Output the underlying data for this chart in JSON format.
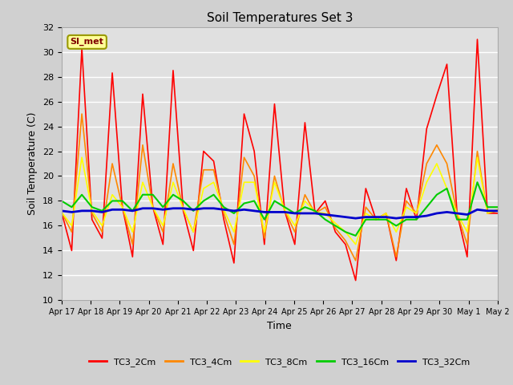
{
  "title": "Soil Temperatures Set 3",
  "xlabel": "Time",
  "ylabel": "Soil Temperature (C)",
  "ylim": [
    10,
    32
  ],
  "yticks": [
    10,
    12,
    14,
    16,
    18,
    20,
    22,
    24,
    26,
    28,
    30,
    32
  ],
  "fig_bg_color": "#d0d0d0",
  "plot_bg_color": "#e0e0e0",
  "grid_color": "#ffffff",
  "watermark_text": "SI_met",
  "watermark_bg": "#ffff99",
  "watermark_border": "#999900",
  "watermark_text_color": "#800000",
  "legend_entries": [
    "TC3_2Cm",
    "TC3_4Cm",
    "TC3_8Cm",
    "TC3_16Cm",
    "TC3_32Cm"
  ],
  "line_colors": [
    "#ff0000",
    "#ff8800",
    "#ffff00",
    "#00cc00",
    "#0000cc"
  ],
  "line_widths": [
    1.2,
    1.2,
    1.2,
    1.5,
    2.0
  ],
  "x_tick_labels": [
    "Apr 17",
    "Apr 18",
    "Apr 19",
    "Apr 20",
    "Apr 21",
    "Apr 22",
    "Apr 23",
    "Apr 24",
    "Apr 25",
    "Apr 26",
    "Apr 27",
    "Apr 28",
    "Apr 29",
    "Apr 30",
    "May 1",
    "May 2"
  ],
  "TC3_2Cm": [
    17.1,
    14.0,
    30.3,
    16.5,
    15.0,
    28.3,
    17.5,
    13.5,
    26.6,
    17.5,
    14.5,
    28.5,
    17.2,
    14.0,
    22.0,
    21.2,
    16.5,
    13.0,
    25.0,
    22.0,
    14.5,
    25.8,
    17.2,
    14.5,
    24.3,
    17.0,
    18.0,
    15.5,
    14.5,
    11.6,
    19.0,
    16.5,
    17.0,
    13.2,
    19.0,
    16.5,
    23.8,
    26.5,
    29.0,
    17.0,
    13.5,
    31.0,
    17.0,
    17.0
  ],
  "TC3_4Cm": [
    17.1,
    15.5,
    25.0,
    17.0,
    15.5,
    21.0,
    17.5,
    14.5,
    22.5,
    17.5,
    15.5,
    21.0,
    17.3,
    15.5,
    20.5,
    20.5,
    17.0,
    14.5,
    21.5,
    20.0,
    15.0,
    20.0,
    17.2,
    15.5,
    18.5,
    17.0,
    17.5,
    15.8,
    14.8,
    13.2,
    17.5,
    16.5,
    17.0,
    13.5,
    18.0,
    17.0,
    21.0,
    22.5,
    21.0,
    17.0,
    14.5,
    22.0,
    17.0,
    17.2
  ],
  "TC3_8Cm": [
    17.1,
    16.0,
    21.5,
    17.2,
    16.0,
    18.5,
    17.5,
    15.5,
    19.5,
    17.5,
    16.0,
    19.5,
    17.4,
    15.5,
    19.0,
    19.5,
    17.3,
    15.5,
    19.5,
    19.5,
    15.5,
    19.5,
    17.3,
    16.0,
    18.0,
    17.1,
    17.0,
    16.2,
    15.5,
    14.5,
    17.0,
    16.5,
    17.0,
    15.5,
    17.5,
    17.0,
    19.5,
    21.0,
    19.0,
    17.0,
    15.5,
    21.5,
    17.0,
    17.3
  ],
  "TC3_16Cm": [
    18.0,
    17.5,
    18.5,
    17.5,
    17.2,
    18.0,
    18.0,
    17.2,
    18.5,
    18.5,
    17.5,
    18.5,
    18.0,
    17.2,
    18.0,
    18.5,
    17.5,
    17.0,
    17.8,
    18.0,
    16.5,
    18.0,
    17.5,
    17.0,
    17.5,
    17.2,
    16.5,
    16.0,
    15.5,
    15.2,
    16.5,
    16.5,
    16.5,
    16.0,
    16.5,
    16.5,
    17.5,
    18.5,
    19.0,
    16.5,
    16.5,
    19.5,
    17.5,
    17.5
  ],
  "TC3_32Cm": [
    17.2,
    17.1,
    17.2,
    17.2,
    17.1,
    17.3,
    17.3,
    17.2,
    17.4,
    17.4,
    17.3,
    17.4,
    17.4,
    17.3,
    17.4,
    17.4,
    17.3,
    17.2,
    17.3,
    17.2,
    17.1,
    17.1,
    17.1,
    17.0,
    17.0,
    17.0,
    16.9,
    16.8,
    16.7,
    16.6,
    16.7,
    16.7,
    16.7,
    16.6,
    16.7,
    16.7,
    16.8,
    17.0,
    17.1,
    17.0,
    16.9,
    17.3,
    17.2,
    17.2
  ]
}
